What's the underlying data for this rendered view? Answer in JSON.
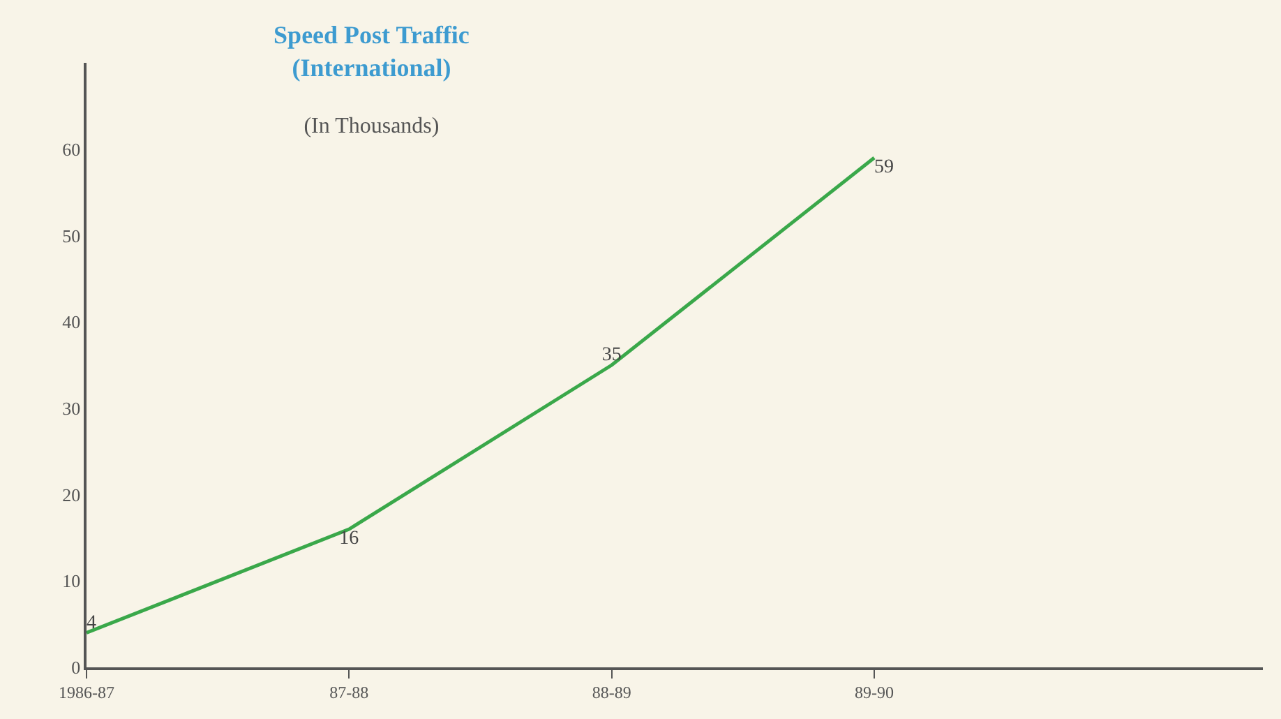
{
  "chart_data": {
    "type": "line",
    "title": "Speed Post Traffic\n(International)",
    "subtitle": "(In Thousands)",
    "categories": [
      "1986-87",
      "87-88",
      "88-89",
      "89-90"
    ],
    "series": [
      {
        "color": "#3aa84a",
        "values": [
          4,
          16,
          35,
          59
        ]
      }
    ],
    "ylim": [
      0,
      70
    ],
    "yticks": [
      0,
      10,
      20,
      30,
      40,
      50,
      60
    ],
    "grid": false,
    "legend": false,
    "marker": "none",
    "line_style": "solid",
    "data_labels": true
  }
}
